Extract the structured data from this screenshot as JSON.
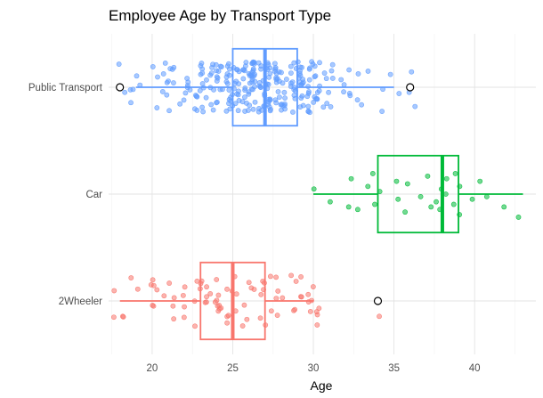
{
  "chart_data": {
    "type": "boxplot",
    "title": "Employee Age by Transport Type",
    "xlabel": "Age",
    "ylabel": "",
    "xlim": [
      17.3,
      43.8
    ],
    "x_ticks": [
      20,
      25,
      30,
      35,
      40
    ],
    "grid": true,
    "legend": "none",
    "categories": [
      "Public Transport",
      "Car",
      "2Wheeler"
    ],
    "series": [
      {
        "category": "Public Transport",
        "color": "#619CFF",
        "whisker_low": 19,
        "q1": 25,
        "median": 27,
        "q3": 29,
        "whisker_high": 35,
        "outliers": [
          18,
          36
        ],
        "points": [
          {
            "x": 18,
            "jitter": 0.2
          },
          {
            "x": 18,
            "jitter": -0.9
          },
          {
            "x": 19,
            "jitter": 0.1
          },
          {
            "x": 19,
            "jitter": 0.6
          },
          {
            "x": 20,
            "jitter": -0.4
          },
          {
            "x": 20,
            "jitter": 0.8
          },
          {
            "x": 21,
            "jitter": -0.7
          },
          {
            "x": 21,
            "jitter": 0.3
          },
          {
            "x": 22,
            "jitter": -0.2
          },
          {
            "x": 22,
            "jitter": 0.5
          },
          {
            "x": 23,
            "jitter": 0.9
          },
          {
            "x": 35,
            "jitter": -0.5
          },
          {
            "x": 36,
            "jitter": 0.2
          },
          {
            "x": 36,
            "jitter": 0.75
          },
          {
            "x": 36,
            "jitter": -0.6
          }
        ],
        "n_points": 280
      },
      {
        "category": "Car",
        "color": "#00BA38",
        "whisker_low": 30,
        "q1": 34,
        "median": 38,
        "q3": 39,
        "whisker_high": 43,
        "outliers": [],
        "points": [
          {
            "x": 30,
            "jitter": -0.2
          },
          {
            "x": 31,
            "jitter": 0.3
          },
          {
            "x": 32,
            "jitter": -0.6
          },
          {
            "x": 32,
            "jitter": 0.5
          },
          {
            "x": 33,
            "jitter": -0.3
          },
          {
            "x": 33,
            "jitter": 0.6
          },
          {
            "x": 34,
            "jitter": -0.1
          },
          {
            "x": 34,
            "jitter": 0.4
          },
          {
            "x": 34,
            "jitter": -0.8
          },
          {
            "x": 35,
            "jitter": -0.5
          },
          {
            "x": 35,
            "jitter": 0.2
          },
          {
            "x": 36,
            "jitter": 0.7
          },
          {
            "x": 36,
            "jitter": -0.4
          },
          {
            "x": 37,
            "jitter": 0.1
          },
          {
            "x": 37,
            "jitter": -0.7
          },
          {
            "x": 37,
            "jitter": 0.5
          },
          {
            "x": 38,
            "jitter": -0.2
          },
          {
            "x": 38,
            "jitter": 0.3
          },
          {
            "x": 38,
            "jitter": -0.6
          },
          {
            "x": 38,
            "jitter": 0.6
          },
          {
            "x": 38,
            "jitter": 0.0
          },
          {
            "x": 39,
            "jitter": -0.3
          },
          {
            "x": 39,
            "jitter": 0.4
          },
          {
            "x": 39,
            "jitter": -0.8
          },
          {
            "x": 39,
            "jitter": 0.8
          },
          {
            "x": 40,
            "jitter": 0.2
          },
          {
            "x": 40,
            "jitter": -0.5
          },
          {
            "x": 41,
            "jitter": 0.1
          },
          {
            "x": 42,
            "jitter": 0.5
          },
          {
            "x": 43,
            "jitter": 0.9
          }
        ]
      },
      {
        "category": "2Wheeler",
        "color": "#F8766D",
        "whisker_low": 18,
        "q1": 23,
        "median": 25,
        "q3": 27,
        "whisker_high": 30,
        "outliers": [
          34
        ],
        "points": [
          {
            "x": 18,
            "jitter": -0.4
          },
          {
            "x": 18,
            "jitter": 0.6
          },
          {
            "x": 19,
            "jitter": -0.9
          },
          {
            "x": 20,
            "jitter": -0.6
          },
          {
            "x": 20,
            "jitter": 0.2
          },
          {
            "x": 21,
            "jitter": 0.7
          },
          {
            "x": 21,
            "jitter": -0.2
          },
          {
            "x": 34,
            "jitter": 0.6
          }
        ],
        "n_points": 85
      }
    ]
  }
}
